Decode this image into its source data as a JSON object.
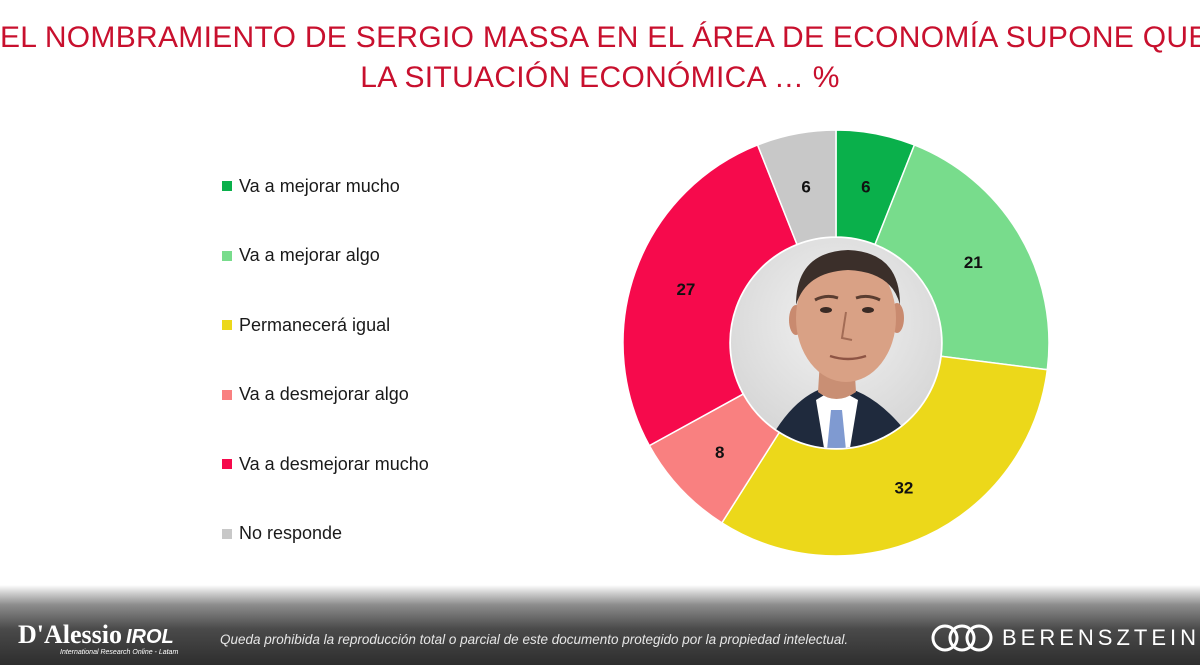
{
  "title": {
    "line1": "EL NOMBRAMIENTO DE SERGIO MASSA EN EL ÁREA DE ECONOMÍA SUPONE QUE",
    "line2": "LA SITUACIÓN ECONÓMICA … %"
  },
  "chart_data": {
    "type": "donut",
    "title": "EL NOMBRAMIENTO DE SERGIO MASSA EN EL ÁREA DE ECONOMÍA SUPONE QUE LA SITUACIÓN ECONÓMICA … %",
    "legend_position": "left",
    "categories": [
      "Va a mejorar mucho",
      "Va a mejorar algo",
      "Permanecerá igual",
      "Va a desmejorar algo",
      "Va a desmejorar mucho",
      "No responde"
    ],
    "values": [
      6,
      21,
      32,
      8,
      27,
      6
    ],
    "colors": [
      "#0ab04b",
      "#78dc8c",
      "#ecd81a",
      "#f98080",
      "#f60a4c",
      "#c8c8c8"
    ]
  },
  "center_image": "portrait-photo",
  "footer": {
    "left_logo": "D'Alessio",
    "left_logo_suffix": "IROL",
    "left_logo_tagline": "International Research Online - Latam",
    "disclaimer": "Queda prohibida la reproducción total o parcial de este documento protegido por la propiedad intelectual.",
    "right_logo": "BERENSZTEIN"
  }
}
